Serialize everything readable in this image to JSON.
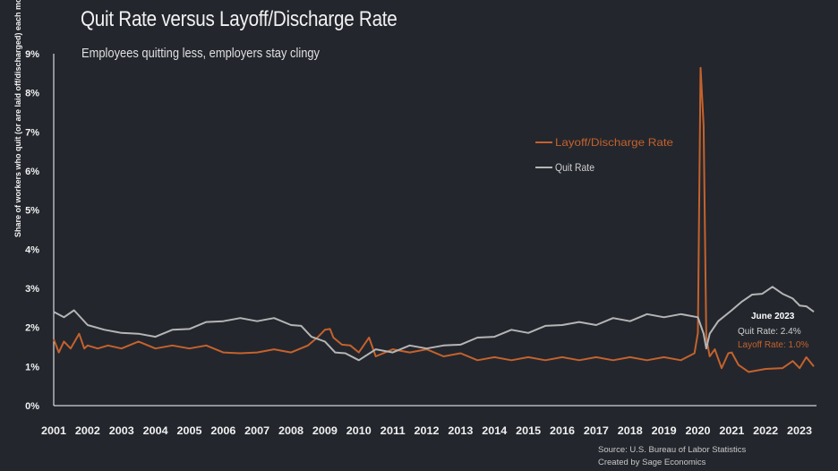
{
  "chart_data": {
    "type": "line",
    "title": "Quit Rate versus Layoff/Discharge Rate",
    "subtitle": "Employees quitting less, employers stay clingy",
    "ylabel": "Share of workers who quit (or are laid off/discharged) each month",
    "xlabel": "",
    "xlim": [
      2001.0,
      2023.5
    ],
    "ylim": [
      0,
      9
    ],
    "grid": false,
    "legend_position": "top-right",
    "y_tick_labels": [
      "0%",
      "1%",
      "2%",
      "3%",
      "4%",
      "5%",
      "6%",
      "7%",
      "8%",
      "9%"
    ],
    "x_tick_labels": [
      "2001",
      "2002",
      "2003",
      "2004",
      "2005",
      "2006",
      "2007",
      "2008",
      "2009",
      "2010",
      "2011",
      "2012",
      "2013",
      "2014",
      "2015",
      "2016",
      "2017",
      "2018",
      "2019",
      "2020",
      "2021",
      "2022",
      "2023"
    ],
    "series": [
      {
        "name": "Layoff/Discharge Rate",
        "color": "#c4622d",
        "x": [
          2001.0,
          2001.15,
          2001.3,
          2001.5,
          2001.75,
          2001.9,
          2002.0,
          2002.3,
          2002.6,
          2003.0,
          2003.5,
          2004.0,
          2004.5,
          2005.0,
          2005.5,
          2006.0,
          2006.5,
          2007.0,
          2007.5,
          2008.0,
          2008.5,
          2008.8,
          2009.0,
          2009.15,
          2009.25,
          2009.5,
          2009.75,
          2010.0,
          2010.3,
          2010.5,
          2011.0,
          2011.5,
          2012.0,
          2012.5,
          2013.0,
          2013.5,
          2014.0,
          2014.5,
          2015.0,
          2015.5,
          2016.0,
          2016.5,
          2017.0,
          2017.5,
          2018.0,
          2018.5,
          2019.0,
          2019.5,
          2019.9,
          2020.0,
          2020.08,
          2020.17,
          2020.25,
          2020.35,
          2020.5,
          2020.7,
          2020.9,
          2021.0,
          2021.2,
          2021.5,
          2022.0,
          2022.5,
          2022.8,
          2023.0,
          2023.2,
          2023.42
        ],
        "values": [
          1.7,
          1.4,
          1.6,
          1.5,
          1.8,
          1.5,
          1.5,
          1.5,
          1.5,
          1.5,
          1.6,
          1.5,
          1.5,
          1.5,
          1.5,
          1.4,
          1.3,
          1.4,
          1.4,
          1.4,
          1.5,
          1.8,
          1.9,
          2.0,
          1.7,
          1.6,
          1.5,
          1.4,
          1.7,
          1.3,
          1.4,
          1.4,
          1.4,
          1.3,
          1.3,
          1.2,
          1.2,
          1.2,
          1.2,
          1.2,
          1.2,
          1.2,
          1.2,
          1.2,
          1.2,
          1.2,
          1.2,
          1.2,
          1.3,
          1.9,
          8.6,
          7.2,
          1.7,
          1.3,
          1.4,
          1.0,
          1.3,
          1.4,
          1.0,
          0.9,
          0.9,
          1.0,
          1.1,
          1.0,
          1.2,
          1.0
        ]
      },
      {
        "name": "Quit Rate",
        "color": "#b5b5b5",
        "x": [
          2001.0,
          2001.3,
          2001.6,
          2002.0,
          2002.5,
          2003.0,
          2003.5,
          2004.0,
          2004.5,
          2005.0,
          2005.5,
          2006.0,
          2006.5,
          2007.0,
          2007.5,
          2008.0,
          2008.3,
          2008.6,
          2009.0,
          2009.3,
          2009.6,
          2010.0,
          2010.5,
          2011.0,
          2011.5,
          2012.0,
          2012.5,
          2013.0,
          2013.5,
          2014.0,
          2014.5,
          2015.0,
          2015.5,
          2016.0,
          2016.5,
          2017.0,
          2017.5,
          2018.0,
          2018.5,
          2019.0,
          2019.5,
          2020.0,
          2020.17,
          2020.25,
          2020.35,
          2020.6,
          2021.0,
          2021.3,
          2021.6,
          2021.9,
          2022.2,
          2022.5,
          2022.8,
          2023.0,
          2023.2,
          2023.42
        ],
        "values": [
          2.4,
          2.3,
          2.4,
          2.1,
          1.9,
          1.9,
          1.8,
          1.8,
          1.9,
          2.0,
          2.1,
          2.2,
          2.2,
          2.2,
          2.2,
          2.1,
          2.0,
          1.8,
          1.6,
          1.4,
          1.3,
          1.2,
          1.4,
          1.4,
          1.5,
          1.5,
          1.5,
          1.6,
          1.7,
          1.8,
          1.9,
          1.9,
          2.0,
          2.1,
          2.1,
          2.1,
          2.2,
          2.2,
          2.3,
          2.3,
          2.3,
          2.3,
          1.8,
          1.5,
          1.8,
          2.2,
          2.4,
          2.7,
          2.8,
          2.9,
          3.0,
          2.9,
          2.7,
          2.6,
          2.5,
          2.4
        ]
      }
    ],
    "annotation": {
      "title": "June 2023",
      "quit_text": "Quit Rate: 2.4%",
      "layoff_text": "Layoff Rate: 1.0%"
    }
  },
  "source_line1": "Source: U.S. Bureau of Labor Statistics",
  "source_line2": "Created by Sage Economics"
}
